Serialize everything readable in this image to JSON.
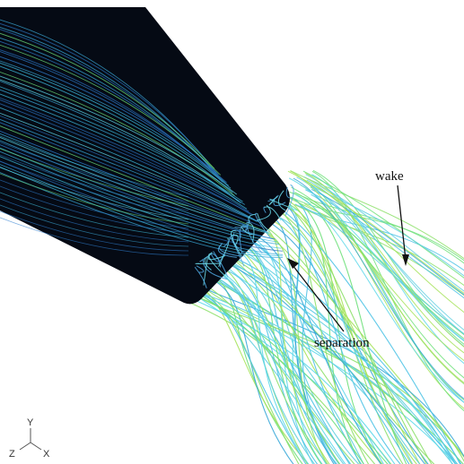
{
  "annotations": {
    "wake": "wake",
    "separation": "separation"
  },
  "axes_triad": {
    "y": "Y",
    "z": "Z",
    "x": "X"
  },
  "colors": {
    "body": "#050a14",
    "streamline_cyan": "#56d6ea",
    "streamline_green": "#6ee07a",
    "streamline_blue": "#2f7fd0",
    "arrow": "#111111"
  }
}
